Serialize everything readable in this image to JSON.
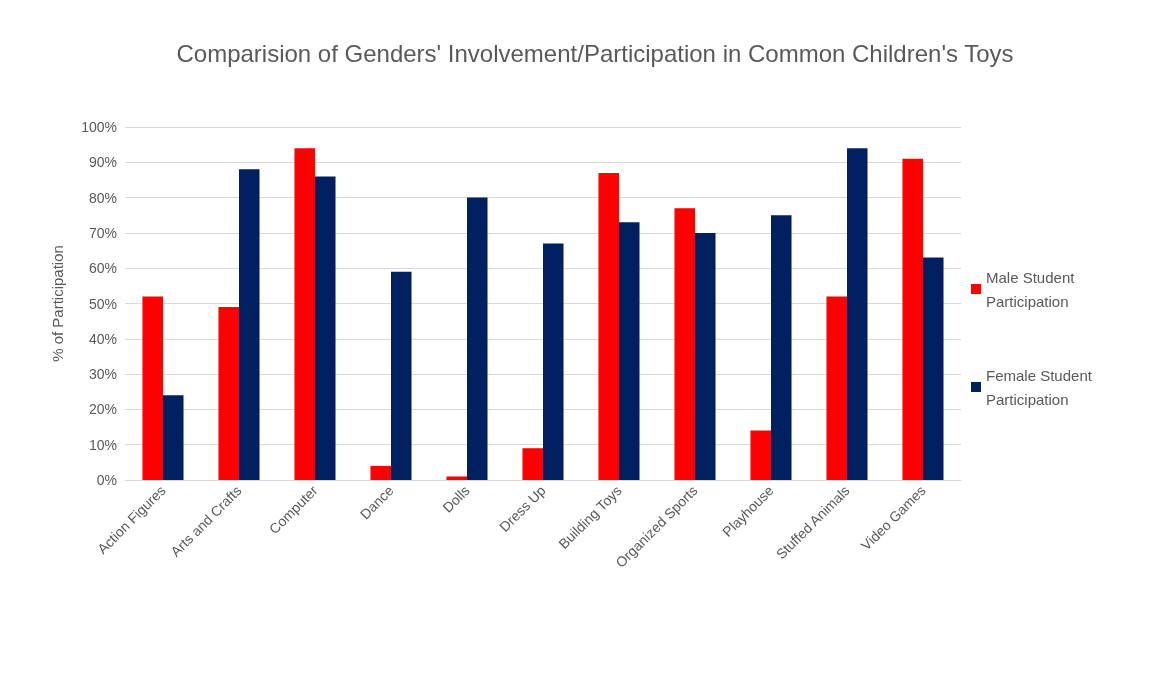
{
  "chart_data": {
    "type": "bar",
    "title": "Comparision of Genders' Involvement/Participation in Common Children's Toys",
    "ylabel": "% of Participation",
    "categories": [
      "Action Figures",
      "Arts and Crafts",
      "Computer",
      "Dance",
      "Dolls",
      "Dress Up",
      "Building Toys",
      "Organized Sports",
      "Playhouse",
      "Stuffed Animals",
      "Video Games"
    ],
    "series": [
      {
        "name": "Male Student Participation",
        "color": "#ff0000",
        "values": [
          52,
          49,
          94,
          4,
          1,
          9,
          87,
          77,
          14,
          52,
          91
        ]
      },
      {
        "name": "Female Student Participation",
        "color": "#002060",
        "values": [
          24,
          88,
          86,
          59,
          80,
          67,
          73,
          70,
          75,
          94,
          63
        ]
      }
    ],
    "ylim": [
      0,
      100
    ],
    "yticks": [
      {
        "value": 0,
        "label": "0%"
      },
      {
        "value": 10,
        "label": "10%"
      },
      {
        "value": 20,
        "label": "20%"
      },
      {
        "value": 30,
        "label": "30%"
      },
      {
        "value": 40,
        "label": "40%"
      },
      {
        "value": 50,
        "label": "50%"
      },
      {
        "value": 60,
        "label": "60%"
      },
      {
        "value": 70,
        "label": "70%"
      },
      {
        "value": 80,
        "label": "80%"
      },
      {
        "value": 90,
        "label": "90%"
      },
      {
        "value": 100,
        "label": "100%"
      }
    ],
    "grid": "y",
    "legend": "right"
  }
}
